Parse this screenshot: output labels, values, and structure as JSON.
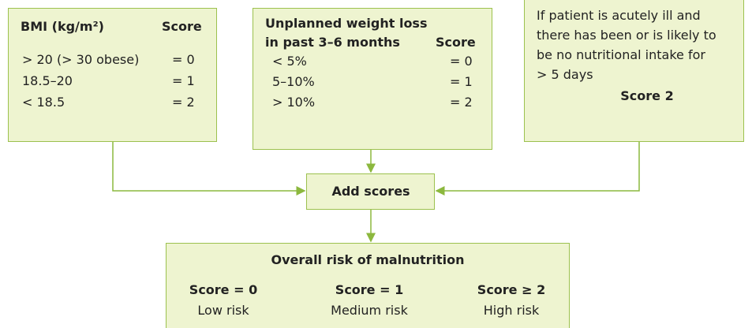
{
  "bmi": {
    "header": "BMI (kg/m²)",
    "score_header": "Score",
    "rows": [
      [
        "> 20 (> 30 obese)",
        "= 0"
      ],
      [
        "18.5–20",
        "= 1"
      ],
      [
        "< 18.5",
        "= 2"
      ]
    ]
  },
  "weight_loss": {
    "header": [
      "Unplanned weight loss",
      "in past 3–6 months"
    ],
    "score_header": "Score",
    "rows": [
      [
        "< 5%",
        "= 0"
      ],
      [
        "5–10%",
        "= 1"
      ],
      [
        "> 10%",
        "= 2"
      ]
    ]
  },
  "acute": {
    "lines": [
      "If patient is acutely ill and",
      "there has been or is likely to",
      "be no nutritional intake for",
      "> 5 days"
    ],
    "score": "Score 2"
  },
  "add": "Add scores",
  "overall": {
    "title": "Overall risk of malnutrition",
    "columns": [
      [
        "Score = 0",
        "Low risk"
      ],
      [
        "Score = 1",
        "Medium risk"
      ],
      [
        "Score ≥ 2",
        "High risk"
      ]
    ]
  }
}
